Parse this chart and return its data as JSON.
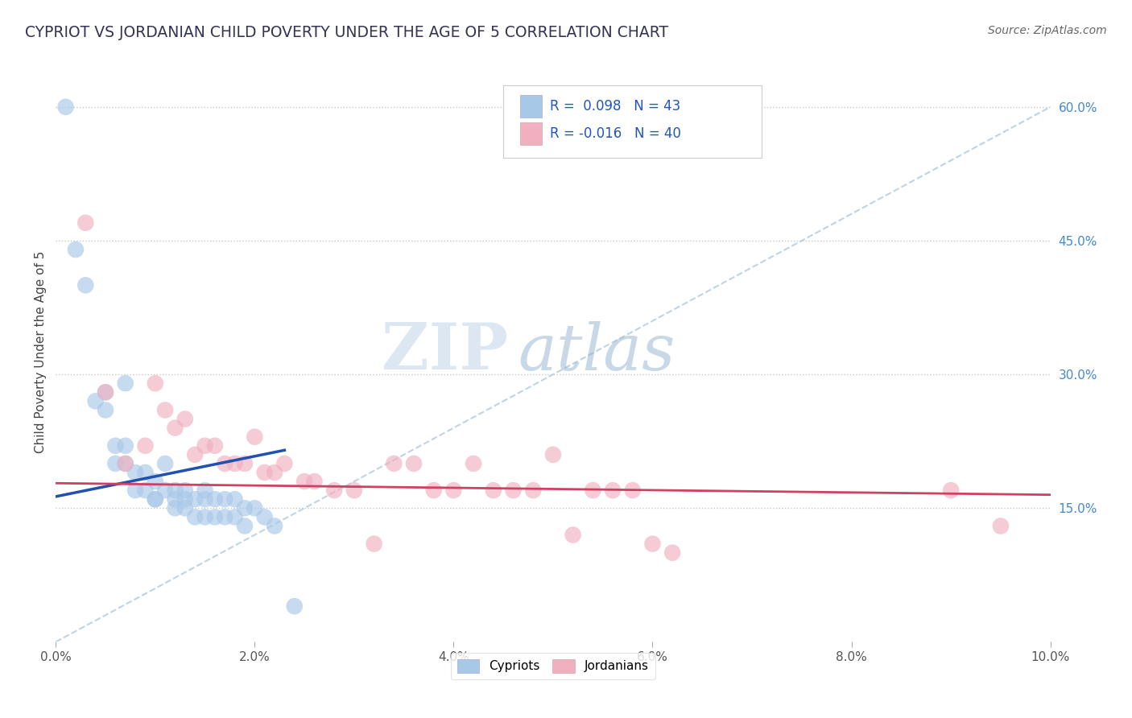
{
  "title": "CYPRIOT VS JORDANIAN CHILD POVERTY UNDER THE AGE OF 5 CORRELATION CHART",
  "source": "Source: ZipAtlas.com",
  "ylabel": "Child Poverty Under the Age of 5",
  "xlim": [
    0.0,
    0.1
  ],
  "ylim": [
    0.0,
    0.65
  ],
  "xticks": [
    0.0,
    0.02,
    0.04,
    0.06,
    0.08,
    0.1
  ],
  "xticklabels": [
    "0.0%",
    "2.0%",
    "4.0%",
    "6.0%",
    "8.0%",
    "10.0%"
  ],
  "yticks_right": [
    0.15,
    0.3,
    0.45,
    0.6
  ],
  "yticks_right_labels": [
    "15.0%",
    "30.0%",
    "45.0%",
    "60.0%"
  ],
  "legend_r_cypriot": "0.098",
  "legend_n_cypriot": "43",
  "legend_r_jordanian": "-0.016",
  "legend_n_jordanian": "40",
  "color_cypriot": "#a8c8e8",
  "color_jordanian": "#f0b0c0",
  "color_trend_cypriot": "#2050b0",
  "color_trend_jordanian": "#d04060",
  "color_diagonal": "#b8d0e0",
  "watermark_zip": "ZIP",
  "watermark_atlas": "atlas",
  "title_color": "#333355",
  "source_color": "#666666",
  "cypriot_x": [
    0.001,
    0.002,
    0.003,
    0.004,
    0.005,
    0.005,
    0.006,
    0.006,
    0.007,
    0.007,
    0.007,
    0.008,
    0.008,
    0.009,
    0.009,
    0.01,
    0.01,
    0.01,
    0.011,
    0.011,
    0.012,
    0.012,
    0.012,
    0.013,
    0.013,
    0.013,
    0.014,
    0.014,
    0.015,
    0.015,
    0.015,
    0.016,
    0.016,
    0.017,
    0.017,
    0.018,
    0.018,
    0.019,
    0.019,
    0.02,
    0.021,
    0.022,
    0.024
  ],
  "cypriot_y": [
    0.6,
    0.44,
    0.4,
    0.27,
    0.26,
    0.28,
    0.22,
    0.2,
    0.29,
    0.22,
    0.2,
    0.19,
    0.17,
    0.19,
    0.17,
    0.18,
    0.16,
    0.16,
    0.2,
    0.17,
    0.17,
    0.16,
    0.15,
    0.17,
    0.16,
    0.15,
    0.16,
    0.14,
    0.17,
    0.16,
    0.14,
    0.16,
    0.14,
    0.16,
    0.14,
    0.16,
    0.14,
    0.15,
    0.13,
    0.15,
    0.14,
    0.13,
    0.04
  ],
  "jordanian_x": [
    0.003,
    0.005,
    0.007,
    0.009,
    0.01,
    0.011,
    0.012,
    0.013,
    0.014,
    0.015,
    0.016,
    0.017,
    0.018,
    0.019,
    0.02,
    0.021,
    0.022,
    0.023,
    0.025,
    0.026,
    0.028,
    0.03,
    0.032,
    0.034,
    0.036,
    0.038,
    0.04,
    0.042,
    0.044,
    0.046,
    0.048,
    0.05,
    0.052,
    0.054,
    0.056,
    0.058,
    0.06,
    0.062,
    0.09,
    0.095
  ],
  "jordanian_y": [
    0.47,
    0.28,
    0.2,
    0.22,
    0.29,
    0.26,
    0.24,
    0.25,
    0.21,
    0.22,
    0.22,
    0.2,
    0.2,
    0.2,
    0.23,
    0.19,
    0.19,
    0.2,
    0.18,
    0.18,
    0.17,
    0.17,
    0.11,
    0.2,
    0.2,
    0.17,
    0.17,
    0.2,
    0.17,
    0.17,
    0.17,
    0.21,
    0.12,
    0.17,
    0.17,
    0.17,
    0.11,
    0.1,
    0.17,
    0.13
  ],
  "cypriot_trend_x0": 0.0,
  "cypriot_trend_y0": 0.163,
  "cypriot_trend_x1": 0.023,
  "cypriot_trend_y1": 0.215,
  "jordanian_trend_x0": 0.0,
  "jordanian_trend_y0": 0.178,
  "jordanian_trend_x1": 0.1,
  "jordanian_trend_y1": 0.165
}
